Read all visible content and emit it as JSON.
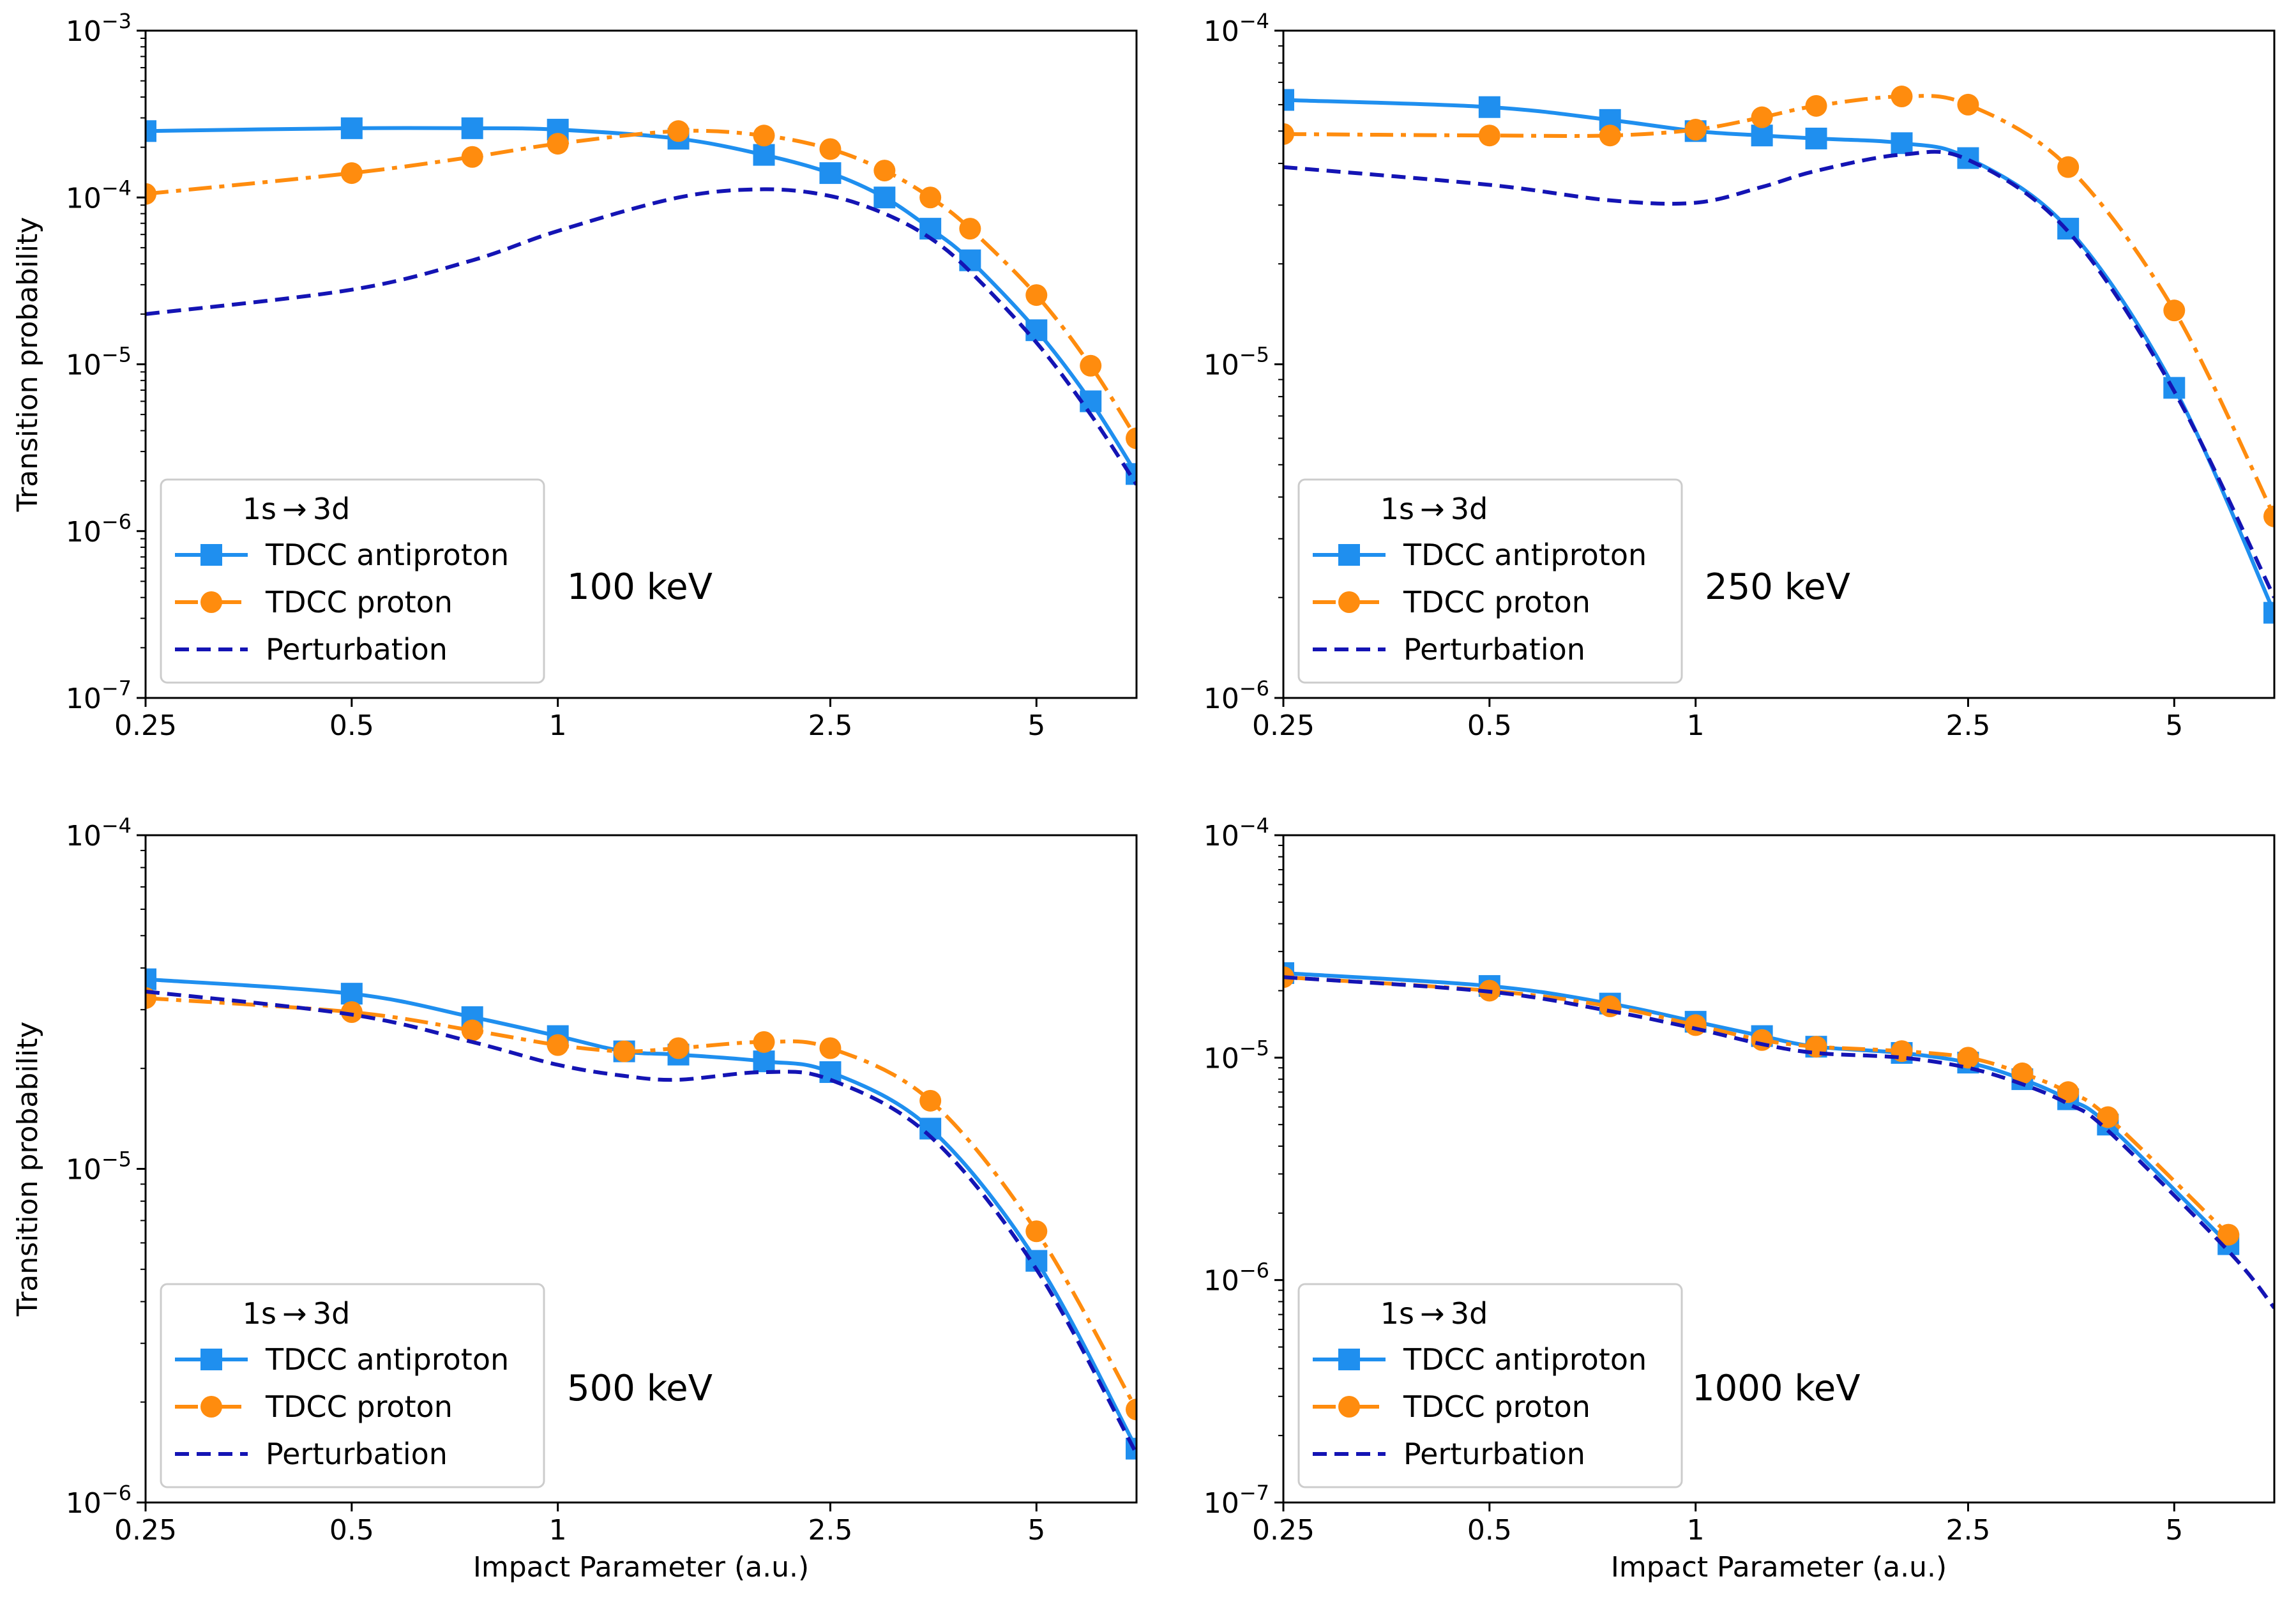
{
  "figure": {
    "legend": {
      "title": "1s → 3d",
      "entries": [
        "TDCC antiproton",
        "TDCC proton",
        "Perturbation"
      ]
    },
    "series_styles": {
      "TDCC antiproton": {
        "color": "#1f8fef",
        "marker": "square",
        "dash": "solid"
      },
      "TDCC proton": {
        "color": "#ff8c0e",
        "marker": "circle",
        "dash": "dashdot"
      },
      "Perturbation": {
        "color": "#1414b4",
        "marker": "none",
        "dash": "dashed"
      }
    }
  },
  "chart_data": [
    {
      "type": "line",
      "annotation": "100 keV",
      "xlabel": "",
      "ylabel": "Transition probability",
      "xscale": "log",
      "yscale": "log",
      "xlim": [
        0.25,
        7.0
      ],
      "ylim": [
        1e-07,
        0.001
      ],
      "xticks": [
        0.25,
        0.5,
        1,
        2.5,
        5
      ],
      "xtick_labels": [
        "0.25",
        "0.5",
        "1",
        "2.5",
        "5"
      ],
      "yticks": [
        1e-07,
        1e-06,
        1e-05,
        0.0001,
        0.001
      ],
      "ytick_labels": [
        [
          "10",
          "−7"
        ],
        [
          "10",
          "−6"
        ],
        [
          "10",
          "−5"
        ],
        [
          "10",
          "−4"
        ],
        [
          "10",
          "−3"
        ]
      ],
      "series": [
        {
          "name": "TDCC antiproton",
          "x": [
            0.25,
            0.5,
            0.75,
            1.0,
            1.5,
            2.0,
            2.5,
            3.0,
            3.5,
            4.0,
            5.0,
            6.0,
            7.0
          ],
          "y": [
            0.00025,
            0.00026,
            0.00026,
            0.000255,
            0.000225,
            0.00018,
            0.00014,
            0.0001,
            6.5e-05,
            4.2e-05,
            1.6e-05,
            6e-06,
            2.2e-06
          ]
        },
        {
          "name": "TDCC proton",
          "x": [
            0.25,
            0.5,
            0.75,
            1.0,
            1.5,
            2.0,
            2.5,
            3.0,
            3.5,
            4.0,
            5.0,
            6.0,
            7.0
          ],
          "y": [
            0.000105,
            0.00014,
            0.000175,
            0.00021,
            0.00025,
            0.000235,
            0.000195,
            0.000145,
            0.0001,
            6.5e-05,
            2.6e-05,
            9.8e-06,
            3.6e-06
          ]
        },
        {
          "name": "Perturbation",
          "x": [
            0.25,
            0.5,
            0.75,
            1.0,
            1.5,
            2.0,
            2.5,
            3.0,
            3.5,
            4.0,
            5.0,
            6.0,
            7.0
          ],
          "y": [
            2e-05,
            2.8e-05,
            4.2e-05,
            6.3e-05,
            0.0001,
            0.000112,
            0.000102,
            8e-05,
            5.7e-05,
            3.6e-05,
            1.35e-05,
            5e-06,
            1.9e-06
          ]
        }
      ]
    },
    {
      "type": "line",
      "annotation": "250 keV",
      "xlabel": "",
      "ylabel": "",
      "xscale": "log",
      "yscale": "log",
      "xlim": [
        0.25,
        7.0
      ],
      "ylim": [
        1e-06,
        0.0001
      ],
      "xticks": [
        0.25,
        0.5,
        1,
        2.5,
        5
      ],
      "xtick_labels": [
        "0.25",
        "0.5",
        "1",
        "2.5",
        "5"
      ],
      "yticks": [
        1e-06,
        1e-05,
        0.0001
      ],
      "ytick_labels": [
        [
          "10",
          "−6"
        ],
        [
          "10",
          "−5"
        ],
        [
          "10",
          "−4"
        ]
      ],
      "series": [
        {
          "name": "TDCC antiproton",
          "x": [
            0.25,
            0.5,
            0.75,
            1.0,
            1.25,
            1.5,
            2.0,
            2.5,
            3.5,
            5.0,
            7.0
          ],
          "y": [
            6.2e-05,
            5.9e-05,
            5.4e-05,
            5e-05,
            4.85e-05,
            4.75e-05,
            4.6e-05,
            4.15e-05,
            2.55e-05,
            8.5e-06,
            1.8e-06
          ]
        },
        {
          "name": "TDCC proton",
          "x": [
            0.25,
            0.5,
            0.75,
            1.0,
            1.25,
            1.5,
            2.0,
            2.5,
            3.5,
            5.0,
            7.0
          ],
          "y": [
            4.9e-05,
            4.85e-05,
            4.85e-05,
            5.05e-05,
            5.5e-05,
            5.95e-05,
            6.35e-05,
            6e-05,
            3.9e-05,
            1.45e-05,
            3.5e-06
          ]
        },
        {
          "name": "Perturbation",
          "x": [
            0.25,
            0.5,
            0.75,
            1.0,
            1.25,
            1.5,
            2.0,
            2.5,
            3.5,
            5.0,
            7.0
          ],
          "y": [
            3.9e-05,
            3.45e-05,
            3.1e-05,
            3.05e-05,
            3.4e-05,
            3.8e-05,
            4.25e-05,
            4.1e-05,
            2.5e-05,
            8.3e-06,
            2e-06
          ]
        }
      ]
    },
    {
      "type": "line",
      "annotation": "500 keV",
      "xlabel": "Impact Parameter (a.u.)",
      "ylabel": "Transition probability",
      "xscale": "log",
      "yscale": "log",
      "xlim": [
        0.25,
        7.0
      ],
      "ylim": [
        1e-06,
        0.0001
      ],
      "xticks": [
        0.25,
        0.5,
        1,
        2.5,
        5
      ],
      "xtick_labels": [
        "0.25",
        "0.5",
        "1",
        "2.5",
        "5"
      ],
      "yticks": [
        1e-06,
        1e-05,
        0.0001
      ],
      "ytick_labels": [
        [
          "10",
          "−6"
        ],
        [
          "10",
          "−5"
        ],
        [
          "10",
          "−4"
        ]
      ],
      "series": [
        {
          "name": "TDCC antiproton",
          "x": [
            0.25,
            0.5,
            0.75,
            1.0,
            1.25,
            1.5,
            2.0,
            2.5,
            3.5,
            5.0,
            7.0
          ],
          "y": [
            3.7e-05,
            3.35e-05,
            2.85e-05,
            2.5e-05,
            2.25e-05,
            2.2e-05,
            2.1e-05,
            1.95e-05,
            1.32e-05,
            5.3e-06,
            1.45e-06
          ]
        },
        {
          "name": "TDCC proton",
          "x": [
            0.25,
            0.5,
            0.75,
            1.0,
            1.25,
            1.5,
            2.0,
            2.5,
            3.5,
            5.0,
            7.0
          ],
          "y": [
            3.25e-05,
            2.95e-05,
            2.6e-05,
            2.35e-05,
            2.25e-05,
            2.3e-05,
            2.4e-05,
            2.3e-05,
            1.6e-05,
            6.5e-06,
            1.9e-06
          ]
        },
        {
          "name": "Perturbation",
          "x": [
            0.25,
            0.5,
            0.75,
            1.0,
            1.25,
            1.5,
            2.0,
            2.5,
            3.5,
            5.0,
            7.0
          ],
          "y": [
            3.4e-05,
            2.9e-05,
            2.4e-05,
            2.05e-05,
            1.9e-05,
            1.85e-05,
            1.95e-05,
            1.85e-05,
            1.25e-05,
            5e-06,
            1.4e-06
          ]
        }
      ]
    },
    {
      "type": "line",
      "annotation": "1000 keV",
      "xlabel": "Impact Parameter (a.u.)",
      "ylabel": "",
      "xscale": "log",
      "yscale": "log",
      "xlim": [
        0.25,
        7.0
      ],
      "ylim": [
        1e-07,
        0.0001
      ],
      "xticks": [
        0.25,
        0.5,
        1,
        2.5,
        5
      ],
      "xtick_labels": [
        "0.25",
        "0.5",
        "1",
        "2.5",
        "5"
      ],
      "yticks": [
        1e-07,
        1e-06,
        1e-05,
        0.0001
      ],
      "ytick_labels": [
        [
          "10",
          "−7"
        ],
        [
          "10",
          "−6"
        ],
        [
          "10",
          "−5"
        ],
        [
          "10",
          "−4"
        ]
      ],
      "series": [
        {
          "name": "TDCC antiproton",
          "x": [
            0.25,
            0.5,
            0.75,
            1.0,
            1.25,
            1.5,
            2.0,
            2.5,
            3.0,
            3.5,
            4.0,
            6.0
          ],
          "y": [
            2.4e-05,
            2.1e-05,
            1.75e-05,
            1.45e-05,
            1.25e-05,
            1.12e-05,
            1.05e-05,
            9.5e-06,
            8e-06,
            6.5e-06,
            5e-06,
            1.45e-06
          ]
        },
        {
          "name": "TDCC proton",
          "x": [
            0.25,
            0.5,
            0.75,
            1.0,
            1.25,
            1.5,
            2.0,
            2.5,
            3.0,
            3.5,
            4.0,
            6.0
          ],
          "y": [
            2.3e-05,
            2e-05,
            1.7e-05,
            1.4e-05,
            1.2e-05,
            1.12e-05,
            1.07e-05,
            1e-05,
            8.5e-06,
            7e-06,
            5.4e-06,
            1.6e-06
          ]
        },
        {
          "name": "Perturbation",
          "x": [
            0.25,
            0.5,
            0.75,
            1.0,
            1.25,
            1.5,
            2.0,
            2.5,
            3.0,
            3.5,
            4.0,
            6.0,
            7.0
          ],
          "y": [
            2.3e-05,
            1.98e-05,
            1.62e-05,
            1.35e-05,
            1.15e-05,
            1.05e-05,
            1e-05,
            9e-06,
            7.6e-06,
            6.2e-06,
            4.7e-06,
            1.35e-06,
            7.5e-07
          ]
        }
      ]
    }
  ]
}
